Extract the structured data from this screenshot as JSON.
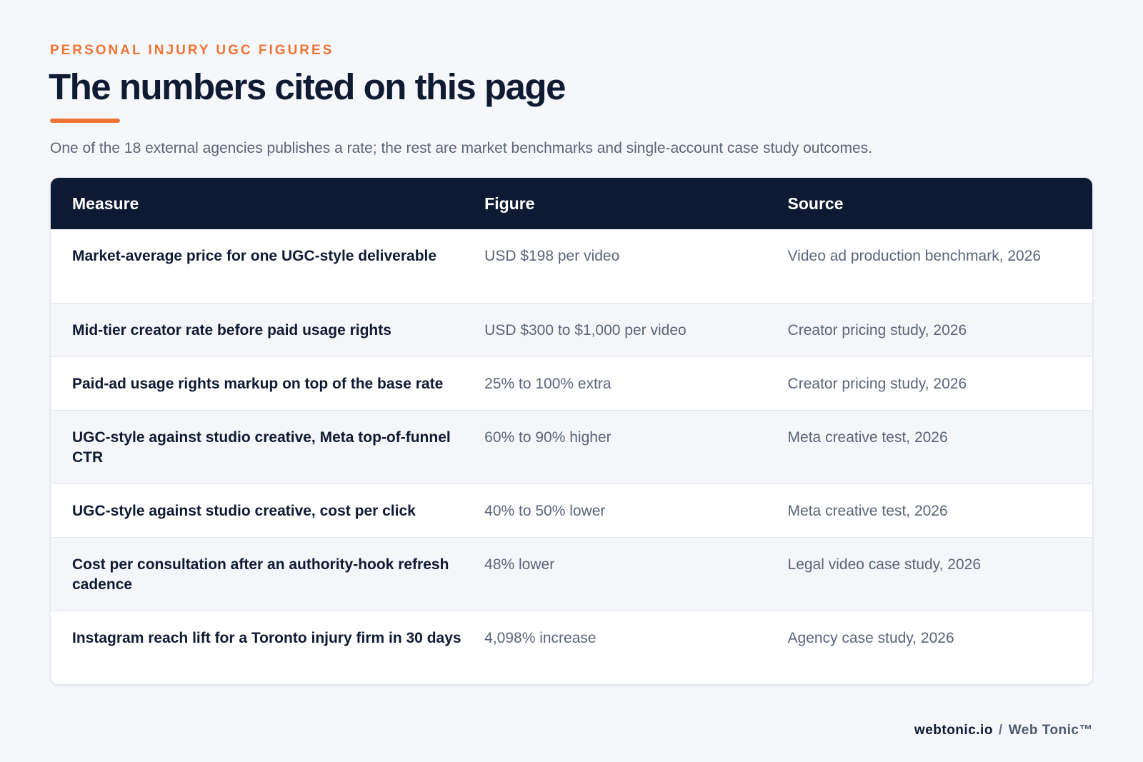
{
  "header": {
    "eyebrow": "PERSONAL INJURY UGC FIGURES",
    "title": "The numbers cited on this page",
    "subtitle": "One of the 18 external agencies publishes a rate; the rest are market benchmarks and single-account case study outcomes."
  },
  "table": {
    "columns": [
      "Measure",
      "Figure",
      "Source"
    ],
    "rows": [
      {
        "measure": "Market-average price for one UGC-style deliverable",
        "figure": "USD $198 per video",
        "source": "Video ad production benchmark, 2026"
      },
      {
        "measure": "Mid-tier creator rate before paid usage rights",
        "figure": "USD $300 to $1,000 per video",
        "source": "Creator pricing study, 2026"
      },
      {
        "measure": "Paid-ad usage rights markup on top of the base rate",
        "figure": "25% to 100% extra",
        "source": "Creator pricing study, 2026"
      },
      {
        "measure": "UGC-style against studio creative, Meta top-of-funnel CTR",
        "figure": "60% to 90% higher",
        "source": "Meta creative test, 2026"
      },
      {
        "measure": "UGC-style against studio creative, cost per click",
        "figure": "40% to 50% lower",
        "source": "Meta creative test, 2026"
      },
      {
        "measure": "Cost per consultation after an authority-hook refresh cadence",
        "figure": "48% lower",
        "source": "Legal video case study, 2026"
      },
      {
        "measure": "Instagram reach lift for a Toronto injury firm in 30 days",
        "figure": "4,098% increase",
        "source": "Agency case study, 2026"
      }
    ]
  },
  "footer": {
    "domain": "webtonic.io",
    "separator": "/",
    "brand": "Web Tonic™"
  },
  "colors": {
    "accent": "#ee7435",
    "header_bg": "#0e1a33",
    "page_bg": "#f5f7fa"
  }
}
